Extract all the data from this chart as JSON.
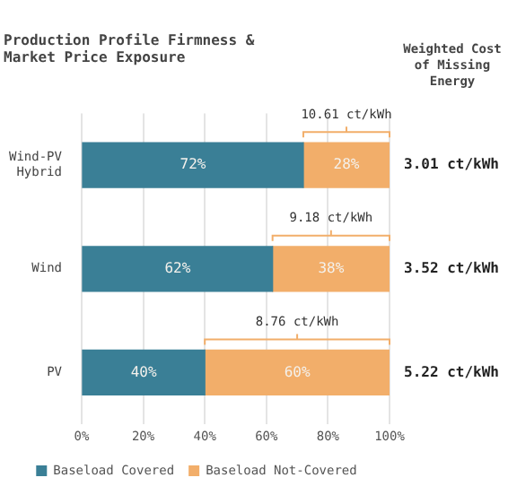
{
  "chart_data": {
    "type": "bar",
    "orientation": "horizontal",
    "stacked": true,
    "title": "Production Profile Firmness & Market Price Exposure",
    "categories": [
      "Wind-PV Hybrid",
      "Wind",
      "PV"
    ],
    "series": [
      {
        "name": "Baseload Covered",
        "color": "#3a7f96",
        "values": [
          72,
          62,
          40
        ],
        "value_labels": [
          "72%",
          "62%",
          "40%"
        ]
      },
      {
        "name": "Baseload Not-Covered",
        "color": "#f2ae6a",
        "values": [
          28,
          38,
          60
        ],
        "value_labels": [
          "28%",
          "38%",
          "60%"
        ]
      }
    ],
    "xlim": [
      0,
      100
    ],
    "xticks": [
      {
        "value": 0,
        "label": "0%"
      },
      {
        "value": 20,
        "label": "20%"
      },
      {
        "value": 40,
        "label": "40%"
      },
      {
        "value": 60,
        "label": "60%"
      },
      {
        "value": 80,
        "label": "80%"
      },
      {
        "value": 100,
        "label": "100%"
      }
    ],
    "annotations": [
      "Weighted Cost of Missing Energy",
      "3.01 ct/kWh",
      "3.52 ct/kWh",
      "5.22 ct/kWh",
      "10.61 ct/kWh",
      "9.18 ct/kWh",
      "8.76 ct/kWh"
    ],
    "grid": "x",
    "legend": "bottom"
  }
}
